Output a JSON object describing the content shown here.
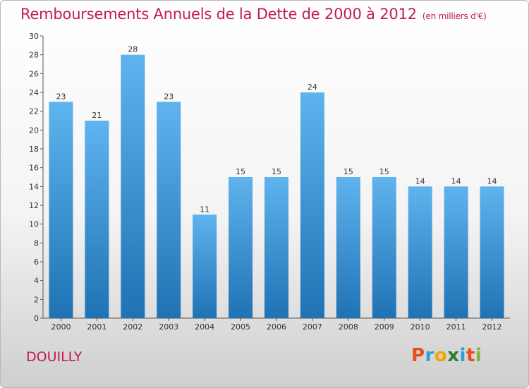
{
  "title": "Remboursements Annuels de la Dette de 2000 à 2012",
  "unit": "(en milliers d'€)",
  "commune": "DOUILLY",
  "brand": [
    "P",
    "r",
    "o",
    "x",
    "i",
    "t",
    "i"
  ],
  "brand_colors": [
    "#e94e1b",
    "#29a3d7",
    "#f5a300",
    "#2e7d32",
    "#29a3d7",
    "#e94e1b",
    "#7cb342"
  ],
  "colors": {
    "accent": "#c2185b",
    "bar_top": "#5fb3ee",
    "bar_bottom": "#1f73b4"
  },
  "chart_data": {
    "type": "bar",
    "categories": [
      "2000",
      "2001",
      "2002",
      "2003",
      "2004",
      "2005",
      "2006",
      "2007",
      "2008",
      "2009",
      "2010",
      "2011",
      "2012"
    ],
    "values": [
      23,
      21,
      28,
      23,
      11,
      15,
      15,
      24,
      15,
      15,
      14,
      14,
      14
    ],
    "ylim": [
      0,
      30
    ],
    "yticks": [
      0,
      2,
      4,
      6,
      8,
      10,
      12,
      14,
      16,
      18,
      20,
      22,
      24,
      26,
      28,
      30
    ],
    "grid": false,
    "data_labels": true
  }
}
